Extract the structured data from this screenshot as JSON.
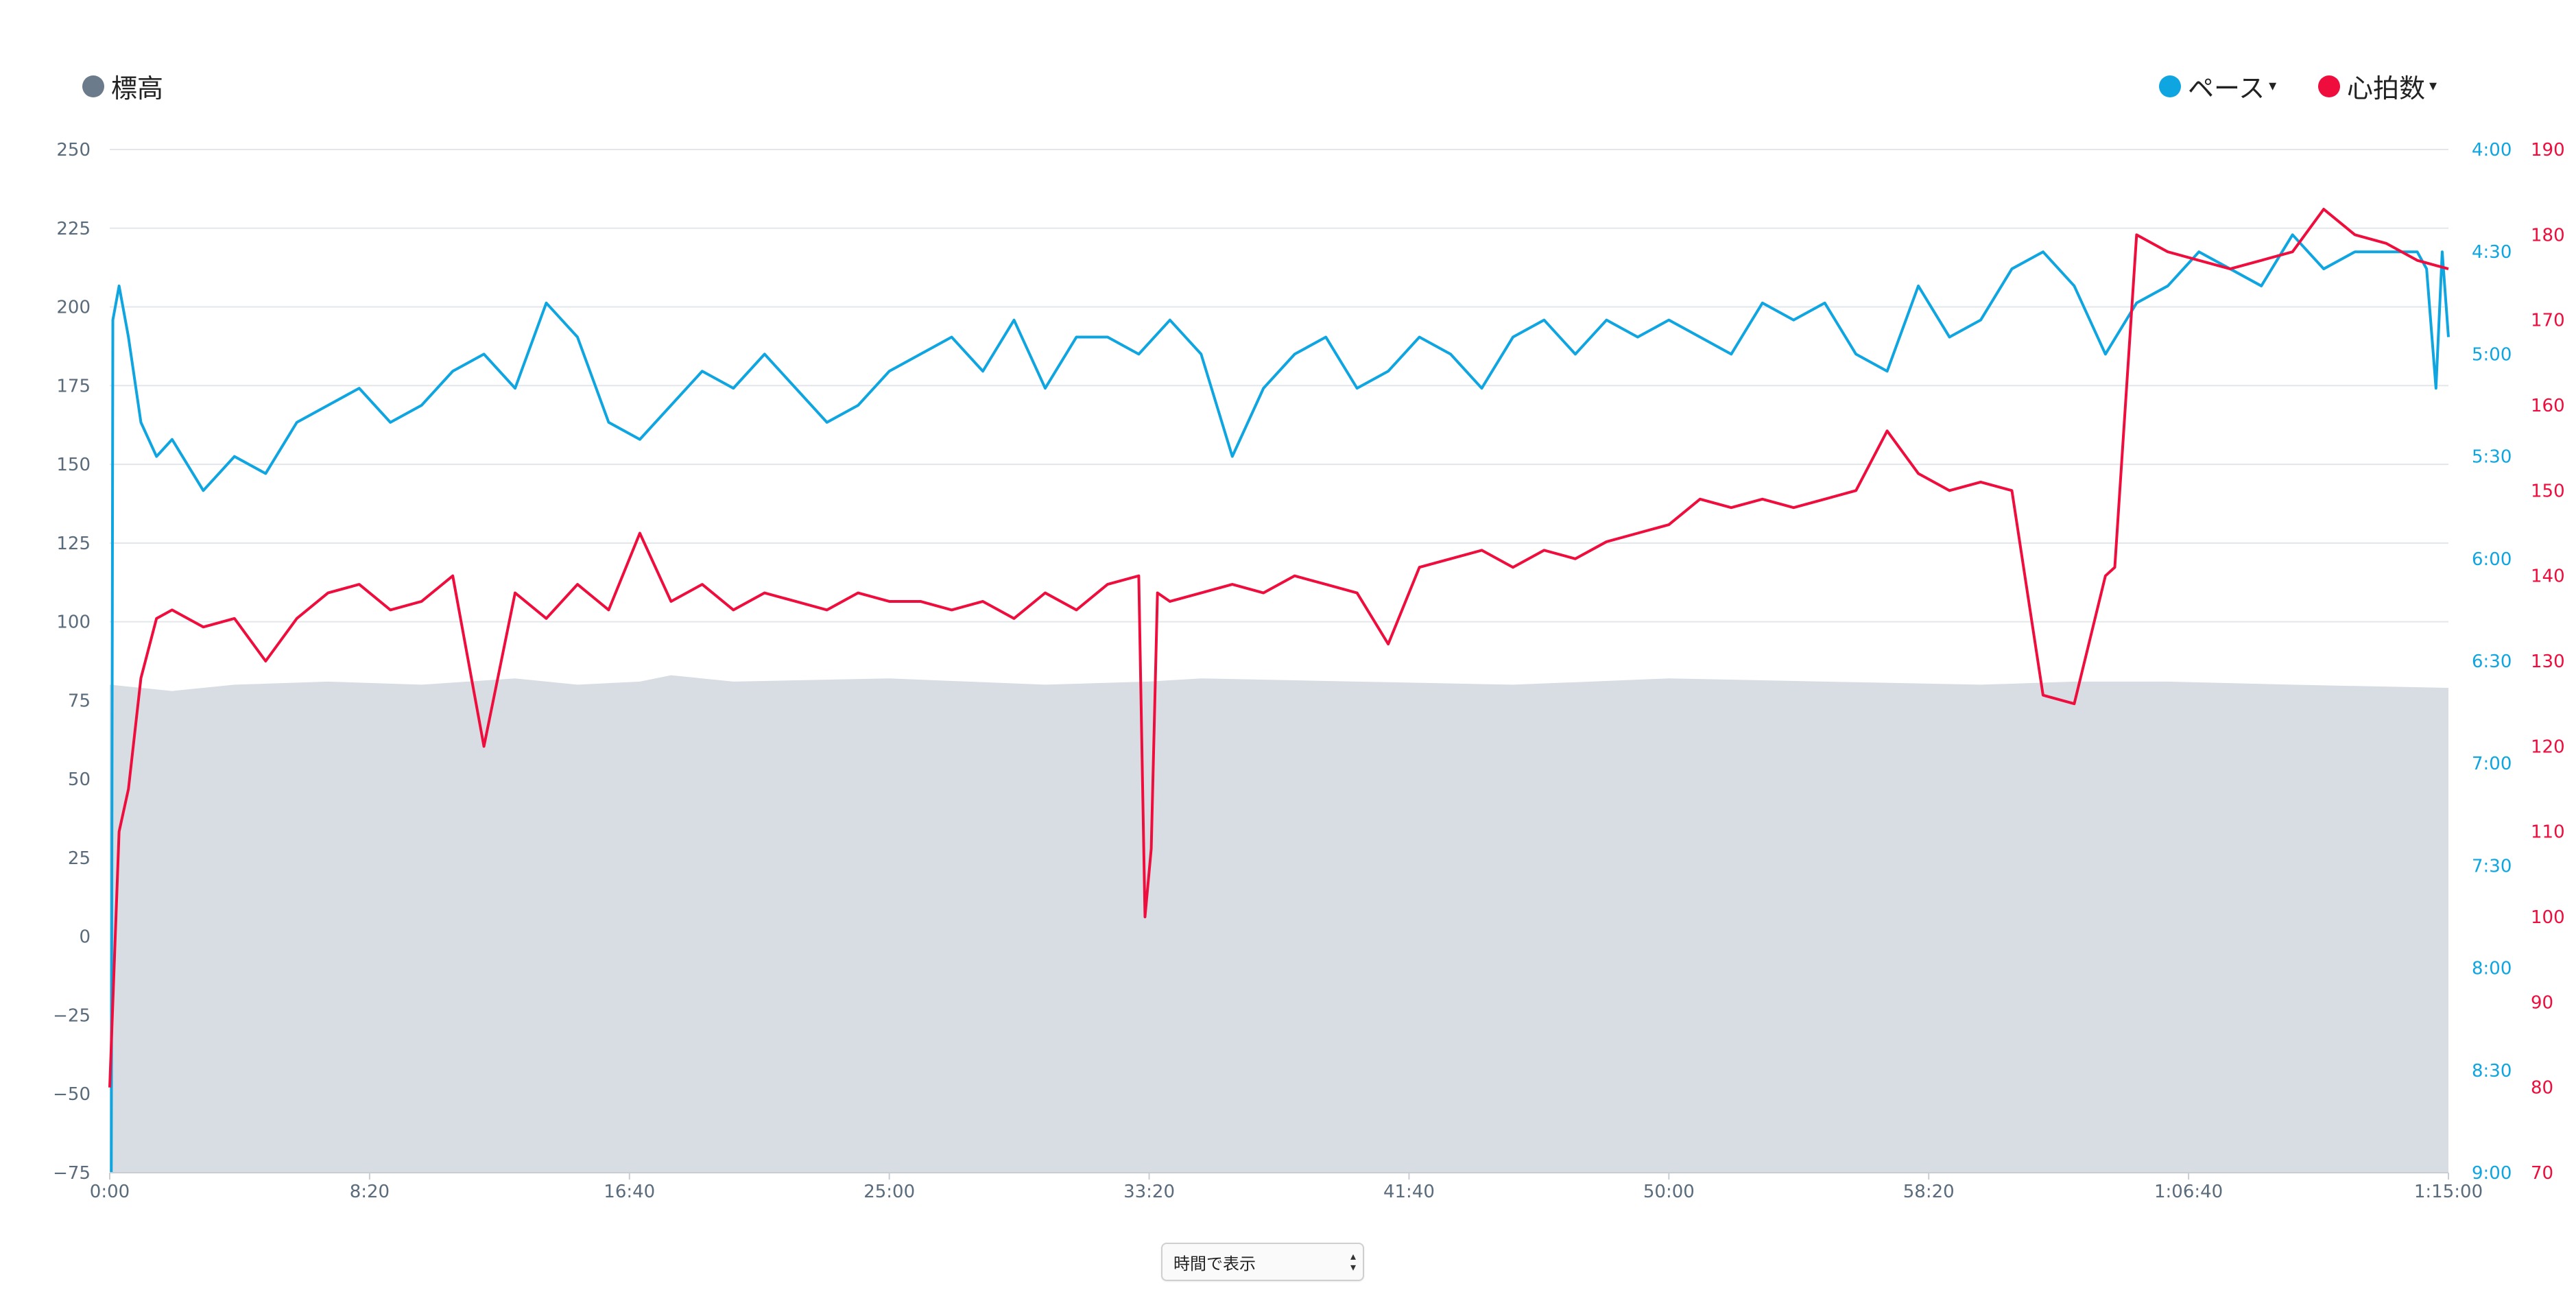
{
  "legend": {
    "elevation": {
      "label": "標高",
      "color": "#6b7b8c",
      "icon": "circle-dot-icon"
    },
    "pace": {
      "label": "ペース",
      "color": "#0ea5e0",
      "icon": "circle-dot-icon",
      "caret": "▾"
    },
    "heart_rate": {
      "label": "心拍数",
      "color": "#ee0d3c",
      "icon": "circle-dot-icon",
      "caret": "▾"
    }
  },
  "control": {
    "select_label": "時間で表示",
    "arrows": "▴▾"
  },
  "chart_data": {
    "type": "line",
    "grid": true,
    "legend_placement": "top",
    "x_axis": {
      "unit": "time",
      "range": [
        "0:00",
        "1:15:00"
      ],
      "ticks": [
        "0:00",
        "8:20",
        "16:40",
        "25:00",
        "33:20",
        "41:40",
        "50:00",
        "58:20",
        "1:06:40",
        "1:15:00"
      ]
    },
    "y_left": {
      "series": "標高",
      "range": [
        -75,
        250
      ],
      "ticks": [
        "250",
        "225",
        "200",
        "175",
        "150",
        "125",
        "100",
        "75",
        "50",
        "25",
        "0",
        "−25",
        "−50",
        "−75"
      ]
    },
    "y_right_pace": {
      "series": "ペース",
      "range": [
        "4:00",
        "9:00"
      ],
      "ticks": [
        "4:00",
        "4:30",
        "5:00",
        "5:30",
        "6:00",
        "6:30",
        "7:00",
        "7:30",
        "8:00",
        "8:30",
        "9:00"
      ]
    },
    "y_right_hr": {
      "series": "心拍数",
      "range": [
        70,
        190
      ],
      "ticks": [
        "190",
        "180",
        "170",
        "160",
        "150",
        "140",
        "130",
        "120",
        "110",
        "100",
        "90",
        "80",
        "70"
      ]
    },
    "series": [
      {
        "name": "標高",
        "kind": "area",
        "color": "#d8dde3",
        "x_min": [
          0,
          2,
          4,
          7,
          10,
          13,
          15,
          17,
          18,
          20,
          25,
          30,
          33.3,
          35,
          40,
          45,
          50,
          55,
          60,
          63,
          66,
          70,
          75
        ],
        "values": [
          80,
          78,
          80,
          81,
          80,
          82,
          80,
          81,
          83,
          81,
          82,
          80,
          81,
          82,
          81,
          80,
          82,
          81,
          80,
          81,
          81,
          80,
          79
        ]
      },
      {
        "name": "ペース",
        "kind": "line",
        "color": "#0ea5e0",
        "x_min": [
          0.05,
          0.1,
          0.3,
          0.6,
          1,
          1.5,
          2,
          3,
          4,
          5,
          6,
          7,
          8,
          9,
          10,
          11,
          12,
          13,
          14,
          15,
          16,
          17,
          18,
          19,
          20,
          21,
          22,
          23,
          24,
          25,
          26,
          27,
          28,
          29,
          30,
          31,
          32,
          33,
          34,
          35,
          36,
          37,
          38,
          39,
          40,
          41,
          42,
          43,
          44,
          45,
          46,
          47,
          48,
          49,
          50,
          51,
          52,
          53,
          54,
          55,
          56,
          57,
          58,
          59,
          60,
          61,
          62,
          63,
          64,
          65,
          66,
          67,
          68,
          69,
          70,
          71,
          72,
          73,
          74,
          74.3,
          74.6,
          74.8,
          75
        ],
        "values": [
          "9:00",
          "4:50",
          "4:40",
          "4:55",
          "5:20",
          "5:30",
          "5:25",
          "5:40",
          "5:30",
          "5:35",
          "5:20",
          "5:15",
          "5:10",
          "5:20",
          "5:15",
          "5:05",
          "5:00",
          "5:10",
          "4:45",
          "4:55",
          "5:20",
          "5:25",
          "5:15",
          "5:05",
          "5:10",
          "5:00",
          "5:10",
          "5:20",
          "5:15",
          "5:05",
          "5:00",
          "4:55",
          "5:05",
          "4:50",
          "5:10",
          "4:55",
          "4:55",
          "5:00",
          "4:50",
          "5:00",
          "5:30",
          "5:10",
          "5:00",
          "4:55",
          "5:10",
          "5:05",
          "4:55",
          "5:00",
          "5:10",
          "4:55",
          "4:50",
          "5:00",
          "4:50",
          "4:55",
          "4:50",
          "4:55",
          "5:00",
          "4:45",
          "4:50",
          "4:45",
          "5:00",
          "5:05",
          "4:40",
          "4:55",
          "4:50",
          "4:35",
          "4:30",
          "4:40",
          "5:00",
          "4:45",
          "4:40",
          "4:30",
          "4:35",
          "4:40",
          "4:25",
          "4:35",
          "4:30",
          "4:30",
          "4:30",
          "4:35",
          "5:10",
          "4:30",
          "4:55"
        ]
      },
      {
        "name": "心拍数",
        "kind": "line",
        "color": "#ee0d3c",
        "x_min": [
          0,
          0.1,
          0.3,
          0.6,
          1,
          1.5,
          2,
          3,
          4,
          5,
          6,
          7,
          8,
          9,
          10,
          11,
          12,
          13,
          14,
          15,
          16,
          17,
          18,
          19,
          20,
          21,
          22,
          23,
          24,
          25,
          26,
          27,
          28,
          29,
          30,
          31,
          32,
          33,
          33.2,
          33.4,
          33.6,
          34,
          35,
          36,
          37,
          38,
          39,
          40,
          41,
          42,
          43,
          44,
          45,
          46,
          47,
          48,
          49,
          50,
          51,
          52,
          53,
          54,
          55,
          56,
          57,
          58,
          59,
          60,
          61,
          62,
          63,
          64,
          64.3,
          65,
          66,
          67,
          68,
          69,
          70,
          71,
          72,
          73,
          74,
          75
        ],
        "values": [
          80,
          90,
          110,
          115,
          128,
          135,
          136,
          134,
          135,
          130,
          135,
          138,
          139,
          136,
          137,
          140,
          120,
          138,
          135,
          139,
          136,
          145,
          137,
          139,
          136,
          138,
          137,
          136,
          138,
          137,
          137,
          136,
          137,
          135,
          138,
          136,
          139,
          140,
          100,
          108,
          138,
          137,
          138,
          139,
          138,
          140,
          139,
          138,
          132,
          141,
          142,
          143,
          141,
          143,
          142,
          144,
          145,
          146,
          149,
          148,
          149,
          148,
          149,
          150,
          157,
          152,
          150,
          151,
          150,
          126,
          125,
          140,
          141,
          180,
          178,
          177,
          176,
          177,
          178,
          183,
          180,
          179,
          177,
          176
        ]
      }
    ]
  }
}
